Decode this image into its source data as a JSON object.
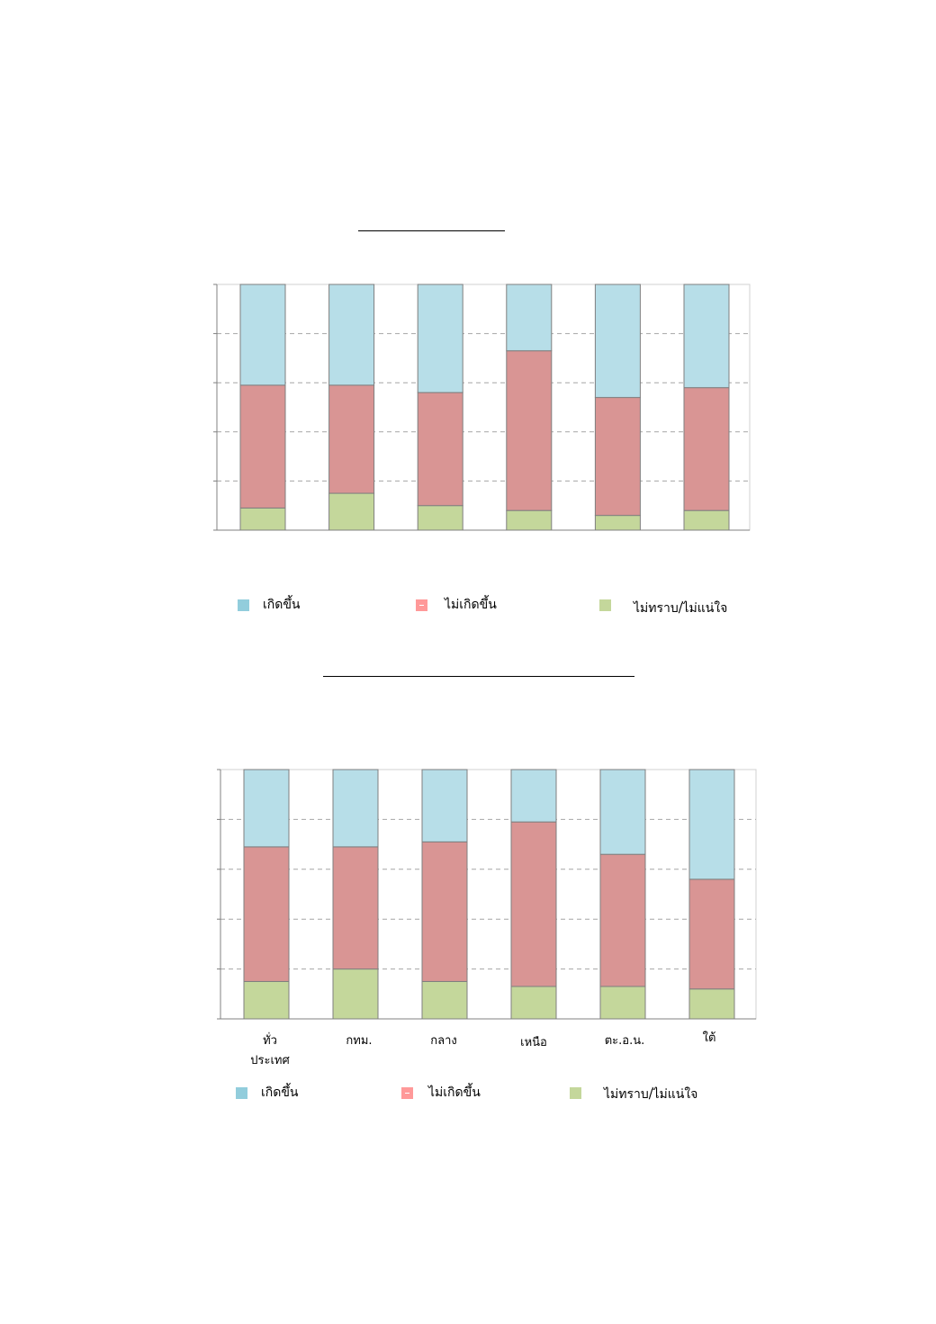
{
  "chart_data": [
    {
      "type": "bar",
      "stacked": true,
      "categories": [
        "",
        "",
        "",
        "",
        "",
        ""
      ],
      "series": [
        {
          "name": "ไม่ทราบ/ไม่แน่ใจ",
          "color": "#c4d79b",
          "values": [
            9,
            15,
            10,
            8,
            6,
            8
          ]
        },
        {
          "name": "ไม่เกิดขึ้น",
          "color": "#d99594",
          "values": [
            50,
            44,
            46,
            65,
            48,
            50
          ]
        },
        {
          "name": "เกิดขึ้น",
          "color": "#b7dee8",
          "values": [
            41,
            41,
            44,
            27,
            46,
            42
          ]
        }
      ],
      "ylim": [
        0,
        100
      ],
      "grid": true,
      "legend_position": "bottom",
      "legend": [
        {
          "label": "เกิดขึ้น",
          "color": "#92cddc"
        },
        {
          "label": "ไม่เกิดขึ้น",
          "color": "#ff9999"
        },
        {
          "label": "ไม่ทราบ/ไม่แน่ใจ",
          "color": "#c4d79b"
        }
      ]
    },
    {
      "type": "bar",
      "stacked": true,
      "categories": [
        "ทั่ว\nประเทศ",
        "กทม.",
        "กลาง",
        "เหนือ",
        "ตะ.อ.น.",
        "ใต้"
      ],
      "series": [
        {
          "name": "ไม่ทราบ/ไม่แน่ใจ",
          "color": "#c4d79b",
          "values": [
            15,
            20,
            15,
            13,
            13,
            12
          ]
        },
        {
          "name": "ไม่เกิดขึ้น",
          "color": "#d99594",
          "values": [
            54,
            49,
            56,
            66,
            53,
            44
          ]
        },
        {
          "name": "เกิดขึ้น",
          "color": "#b7dee8",
          "values": [
            31,
            31,
            29,
            21,
            34,
            44
          ]
        }
      ],
      "ylim": [
        0,
        100
      ],
      "grid": true,
      "legend_position": "bottom",
      "legend": [
        {
          "label": "เกิดขึ้น",
          "color": "#92cddc"
        },
        {
          "label": "ไม่เกิดขึ้น",
          "color": "#ff9999"
        },
        {
          "label": "ไม่ทราบ/ไม่แน่ใจ",
          "color": "#c4d79b"
        }
      ]
    }
  ]
}
